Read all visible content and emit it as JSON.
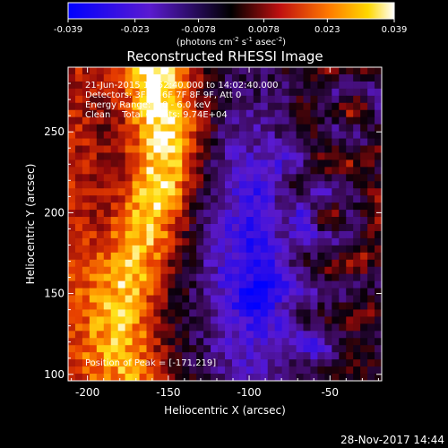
{
  "chart_data": {
    "type": "heatmap",
    "title": "Reconstructed RHESSI Image",
    "colorbar": {
      "ticks": [
        "-0.039",
        "-0.023",
        "-0.0078",
        "0.0078",
        "0.023",
        "0.039"
      ],
      "range": [
        -0.039,
        0.039
      ],
      "units_main": "(photons cm",
      "units_sup1": "-2",
      "units_s": " s",
      "units_sup2": "-1",
      "units_asec": " asec",
      "units_sup3": "-2",
      "units_close": ")"
    },
    "xlabel": "Heliocentric X (arcsec)",
    "ylabel": "Heliocentric Y (arcsec)",
    "xlim": [
      -212,
      -18
    ],
    "ylim": [
      96,
      290
    ],
    "xticks": [
      -200,
      -150,
      -100,
      -50
    ],
    "yticks": [
      100,
      150,
      200,
      250
    ],
    "xtick_labels": [
      "-200",
      "-150",
      "-100",
      "-50"
    ],
    "ytick_labels": [
      "100",
      "150",
      "200",
      "250"
    ],
    "annotations": {
      "time": "21-Jun-2015 13:52:40.000 to 14:02:40.000",
      "detectors": "Detectors: 3F 5F 6F 7F 8F 9F, Att 0",
      "energy": "Energy Range: 3.0 - 6.0 keV",
      "clean": "Clean    Total Counts: 9.74E+04",
      "peak": "Position of Peak = [-171,219]"
    },
    "peak": {
      "x": -171,
      "y": 219
    },
    "colors": {
      "low": "#0000ff",
      "mid": "#000000",
      "high": "#ffffff"
    }
  },
  "footer": {
    "date": "28-Nov-2017 14:44"
  }
}
